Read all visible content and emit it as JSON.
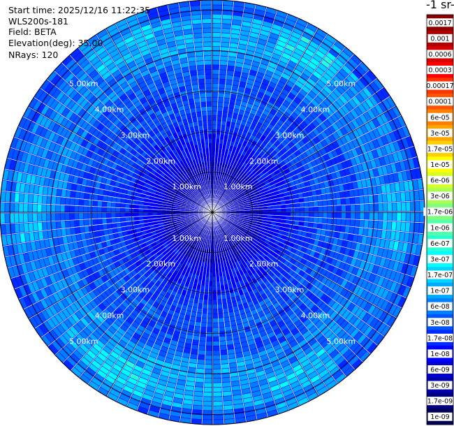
{
  "info": {
    "start_time": "Start time: 2025/12/16 11:22:35",
    "device": "WLS200s-181",
    "field": "Field: BETA",
    "elevation": "Elevation(deg): 35.00",
    "nrays": "NRays: 120"
  },
  "chart_data": {
    "type": "heatmap",
    "projection": "polar",
    "title": "",
    "colorbar_title": "-1 sr-",
    "n_rays": 120,
    "range_rings_km": [
      1,
      2,
      3,
      4,
      5
    ],
    "range_labels": [
      "1.00km",
      "2.00km",
      "3.00km",
      "4.00km",
      "5.00km"
    ],
    "max_range_km": 5.25,
    "colorbar_ticks": [
      "0.0017",
      "0.001",
      "0.0006",
      "0.0003",
      "0.00017",
      "0.0001",
      "6e-05",
      "3e-05",
      "1.7e-05",
      "1e-05",
      "6e-06",
      "3e-06",
      "1.7e-06",
      "1e-06",
      "6e-07",
      "3e-07",
      "1.7e-07",
      "1e-07",
      "6e-08",
      "3e-08",
      "1.7e-08",
      "1e-08",
      "6e-09",
      "3e-09",
      "1.7e-09",
      "1e-09"
    ],
    "colorbar_colors": [
      "#8b0000",
      "#b00000",
      "#d40000",
      "#ff0000",
      "#ff3300",
      "#ff5500",
      "#ff7f00",
      "#ffa500",
      "#ffd000",
      "#ffff00",
      "#d4ff2a",
      "#a8ff55",
      "#7fff7f",
      "#55ffaa",
      "#2affd4",
      "#00ffff",
      "#00d4ff",
      "#00aaff",
      "#007fff",
      "#0055ff",
      "#002aff",
      "#0000ff",
      "#0000d4",
      "#0000aa",
      "#00007f",
      "#000055"
    ],
    "pattern": "azimuth-range backscatter (BETA) with enhanced ring near 4-5 km",
    "grid": true
  }
}
